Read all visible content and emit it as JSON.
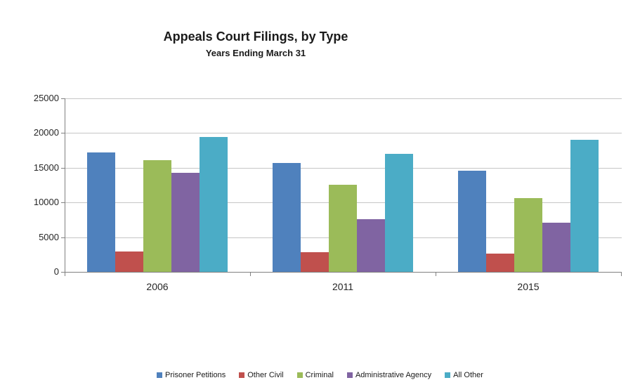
{
  "header": {
    "title": "Appeals Court Filings, by Type",
    "subtitle": "Years Ending March 31"
  },
  "chart_data": {
    "type": "bar",
    "title": "Appeals Court Filings, by Type",
    "subtitle": "Years Ending March 31",
    "categories": [
      "2006",
      "2011",
      "2015"
    ],
    "series": [
      {
        "name": "Prisoner Petitions",
        "color": "#4F81BD",
        "values": [
          17200,
          15700,
          14600
        ]
      },
      {
        "name": "Other Civil",
        "color": "#C0504D",
        "values": [
          2950,
          2800,
          2650
        ]
      },
      {
        "name": "Criminal",
        "color": "#9BBB59",
        "values": [
          16100,
          12600,
          10650
        ]
      },
      {
        "name": "Administrative Agency",
        "color": "#8064A2",
        "values": [
          14300,
          7600,
          7100
        ]
      },
      {
        "name": "All Other",
        "color": "#4BACC6",
        "values": [
          19450,
          17000,
          19000
        ]
      }
    ],
    "xlabel": "",
    "ylabel": "",
    "ylim": [
      0,
      25000
    ],
    "ytick_interval": 5000,
    "ytick_labels": [
      "25000",
      "20000",
      "15000",
      "10000",
      "5000",
      "0"
    ],
    "grid": "horizontal",
    "legend_position": "bottom"
  },
  "colors": {
    "background": "#FFFFFF",
    "gridline": "#C6C6C6",
    "axis": "#808080",
    "text": "#262626"
  }
}
